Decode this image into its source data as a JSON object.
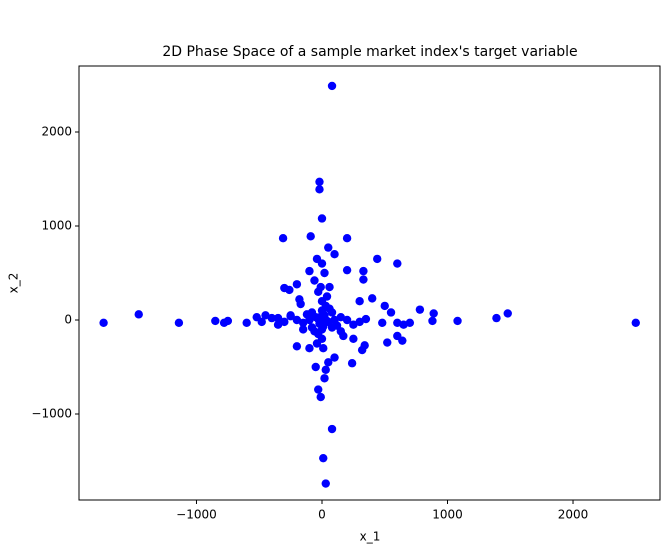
{
  "chart_data": {
    "type": "scatter",
    "title": "2D Phase Space of a sample market index's target variable",
    "x_label": "x_1",
    "y_label": "x_2",
    "xlim": [
      -1936,
      2693
    ],
    "ylim": [
      -1915,
      2702
    ],
    "xticks": [
      {
        "value": -1000,
        "label": "−1000"
      },
      0,
      1000,
      2000
    ],
    "yticks": [
      {
        "value": -1000,
        "label": "−1000"
      },
      0,
      1000,
      2000
    ],
    "grid": false,
    "color": "#0000ff",
    "x": [
      -1740,
      -1460,
      -1140,
      2500,
      1480,
      1390,
      1080,
      890,
      880,
      780,
      700,
      650,
      600,
      600,
      640,
      520,
      480,
      80,
      -20,
      -20,
      0,
      -90,
      -310,
      200,
      330,
      330,
      440,
      600,
      80,
      10,
      30,
      -10,
      -30,
      20,
      30,
      240,
      340,
      320,
      -200,
      -850,
      -780,
      -750,
      -600,
      -520,
      -480,
      -400,
      -300,
      -250,
      -200,
      -260,
      -300,
      -180,
      -100,
      50,
      100,
      200,
      300,
      400,
      500,
      550,
      -450,
      -350,
      -150,
      150,
      250,
      -100,
      100,
      -50,
      50,
      -30,
      60,
      -60,
      0,
      20,
      -40,
      0,
      20,
      -20,
      50,
      -50,
      100,
      -100,
      0,
      0,
      80,
      -80,
      80,
      -80,
      150,
      -150,
      30,
      -30,
      200,
      -200,
      0,
      0,
      120,
      -120,
      60,
      -60,
      250,
      -250,
      40,
      -40,
      300,
      350,
      -350,
      10,
      -10,
      170,
      -170,
      0,
      40,
      -30,
      10
    ],
    "y": [
      -30,
      60,
      -30,
      -30,
      70,
      20,
      -10,
      70,
      -10,
      110,
      -30,
      -50,
      -30,
      -170,
      -220,
      -240,
      -30,
      2490,
      1470,
      1390,
      1080,
      890,
      870,
      870,
      520,
      430,
      650,
      600,
      -1160,
      -1470,
      -1740,
      -820,
      -740,
      -620,
      -530,
      -460,
      -270,
      -320,
      -280,
      -10,
      -30,
      -10,
      -30,
      30,
      -20,
      20,
      -20,
      40,
      380,
      320,
      340,
      220,
      520,
      770,
      700,
      530,
      200,
      230,
      150,
      80,
      50,
      -50,
      -100,
      -120,
      -200,
      -300,
      -400,
      -500,
      -450,
      300,
      350,
      420,
      600,
      500,
      650,
      0,
      50,
      -40,
      -20,
      30,
      0,
      0,
      100,
      -100,
      80,
      -80,
      -80,
      80,
      30,
      -30,
      150,
      -150,
      0,
      0,
      200,
      -200,
      -60,
      60,
      120,
      -120,
      -50,
      50,
      250,
      -250,
      -20,
      10,
      20,
      -300,
      350,
      -170,
      170,
      50,
      -10,
      10,
      -70
    ]
  }
}
